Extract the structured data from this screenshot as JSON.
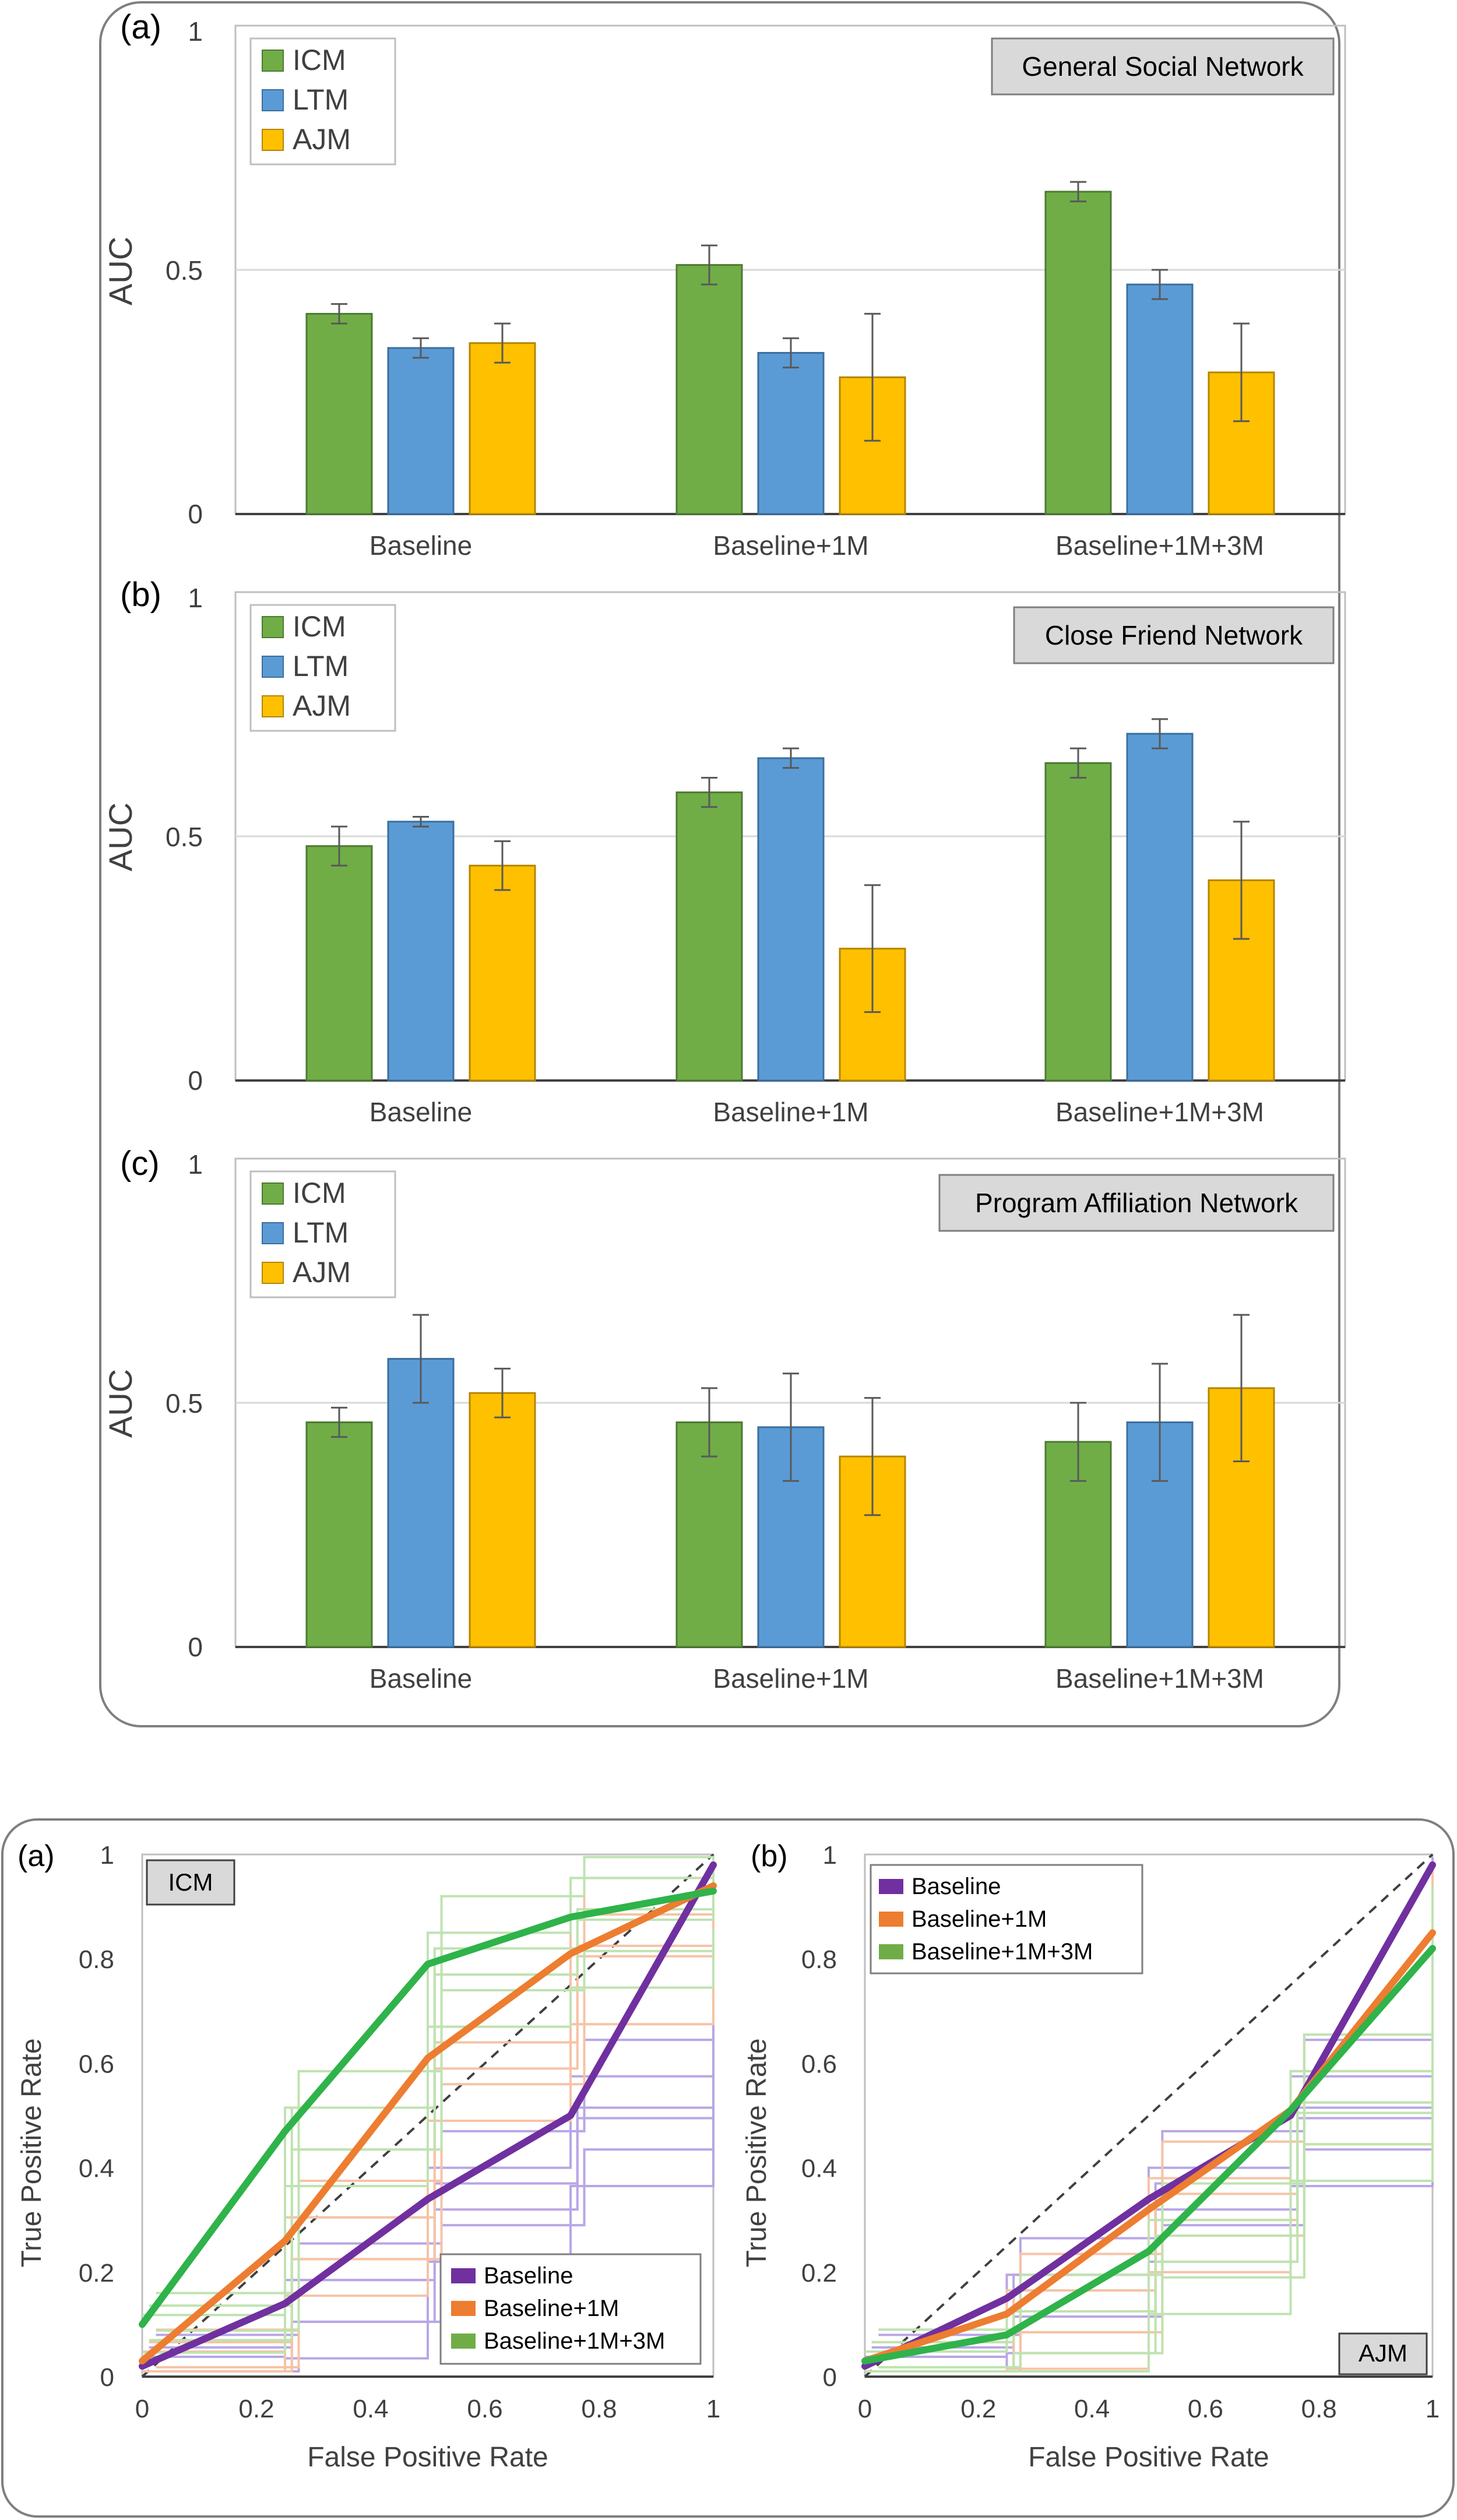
{
  "figure_top": {
    "categories": [
      "Baseline",
      "Baseline+1M",
      "Baseline+1M+3M"
    ],
    "series_names": [
      "ICM",
      "LTM",
      "AJM"
    ],
    "colors": {
      "ICM": "#70ad47",
      "LTM": "#5b9bd5",
      "AJM": "#ffc000"
    },
    "y_axis_title": "AUC",
    "y_ticks": [
      "0",
      "0.5",
      "1"
    ]
  },
  "figure_bottom": {
    "x_axis_title": "False Positive Rate",
    "y_axis_title": "True Positive Rate",
    "x_ticks": [
      "0",
      "0.2",
      "0.4",
      "0.6",
      "0.8",
      "1"
    ],
    "y_ticks": [
      "0",
      "0.2",
      "0.4",
      "0.6",
      "0.8",
      "1"
    ],
    "legend": [
      "Baseline",
      "Baseline+1M",
      "Baseline+1M+3M"
    ],
    "colors": {
      "Baseline": "#7030a0",
      "Baseline+1M": "#ed7d31",
      "Baseline+1M+3M": "#2fb34a"
    }
  },
  "chart_data": [
    {
      "type": "bar",
      "panel": "(a)",
      "title": "General Social Network",
      "categories": [
        "Baseline",
        "Baseline+1M",
        "Baseline+1M+3M"
      ],
      "ylabel": "AUC",
      "ylim": [
        0,
        1
      ],
      "grid": true,
      "legend_position": "top-left",
      "series": [
        {
          "name": "ICM",
          "values": [
            0.41,
            0.51,
            0.66
          ],
          "errors": [
            0.02,
            0.04,
            0.02
          ]
        },
        {
          "name": "LTM",
          "values": [
            0.34,
            0.33,
            0.47
          ],
          "errors": [
            0.02,
            0.03,
            0.03
          ]
        },
        {
          "name": "AJM",
          "values": [
            0.35,
            0.28,
            0.29
          ],
          "errors": [
            0.04,
            0.13,
            0.1
          ]
        }
      ]
    },
    {
      "type": "bar",
      "panel": "(b)",
      "title": "Close Friend Network",
      "categories": [
        "Baseline",
        "Baseline+1M",
        "Baseline+1M+3M"
      ],
      "ylabel": "AUC",
      "ylim": [
        0,
        1
      ],
      "grid": true,
      "legend_position": "top-left",
      "series": [
        {
          "name": "ICM",
          "values": [
            0.48,
            0.59,
            0.65
          ],
          "errors": [
            0.04,
            0.03,
            0.03
          ]
        },
        {
          "name": "LTM",
          "values": [
            0.53,
            0.66,
            0.71
          ],
          "errors": [
            0.01,
            0.02,
            0.03
          ]
        },
        {
          "name": "AJM",
          "values": [
            0.44,
            0.27,
            0.41
          ],
          "errors": [
            0.05,
            0.13,
            0.12
          ]
        }
      ]
    },
    {
      "type": "bar",
      "panel": "(c)",
      "title": "Program Affiliation Network",
      "categories": [
        "Baseline",
        "Baseline+1M",
        "Baseline+1M+3M"
      ],
      "ylabel": "AUC",
      "ylim": [
        0,
        1
      ],
      "grid": true,
      "legend_position": "top-left",
      "series": [
        {
          "name": "ICM",
          "values": [
            0.46,
            0.46,
            0.42
          ],
          "errors": [
            0.03,
            0.07,
            0.08
          ]
        },
        {
          "name": "LTM",
          "values": [
            0.59,
            0.45,
            0.46
          ],
          "errors": [
            0.09,
            0.11,
            0.12
          ]
        },
        {
          "name": "AJM",
          "values": [
            0.52,
            0.39,
            0.53
          ],
          "errors": [
            0.05,
            0.12,
            0.15
          ]
        }
      ]
    },
    {
      "type": "line",
      "panel": "(a)",
      "title": "ICM",
      "xlabel": "False Positive Rate",
      "ylabel": "True Positive Rate",
      "xlim": [
        0,
        1
      ],
      "ylim": [
        0,
        1
      ],
      "legend_position": "bottom-right",
      "x": [
        0,
        0.25,
        0.5,
        0.75,
        1
      ],
      "series": [
        {
          "name": "Baseline",
          "values": [
            0.02,
            0.14,
            0.34,
            0.5,
            0.98
          ]
        },
        {
          "name": "Baseline+1M",
          "values": [
            0.03,
            0.26,
            0.61,
            0.81,
            0.94
          ]
        },
        {
          "name": "Baseline+1M+3M",
          "values": [
            0.1,
            0.47,
            0.79,
            0.88,
            0.93
          ]
        }
      ]
    },
    {
      "type": "line",
      "panel": "(b)",
      "title": "AJM",
      "xlabel": "False Positive Rate",
      "ylabel": "True Positive Rate",
      "xlim": [
        0,
        1
      ],
      "ylim": [
        0,
        1
      ],
      "legend_position": "top-left",
      "x": [
        0,
        0.25,
        0.5,
        0.75,
        1
      ],
      "series": [
        {
          "name": "Baseline",
          "values": [
            0.02,
            0.15,
            0.34,
            0.5,
            0.98
          ]
        },
        {
          "name": "Baseline+1M",
          "values": [
            0.03,
            0.12,
            0.32,
            0.51,
            0.85
          ]
        },
        {
          "name": "Baseline+1M+3M",
          "values": [
            0.03,
            0.08,
            0.24,
            0.51,
            0.82
          ]
        }
      ]
    }
  ]
}
